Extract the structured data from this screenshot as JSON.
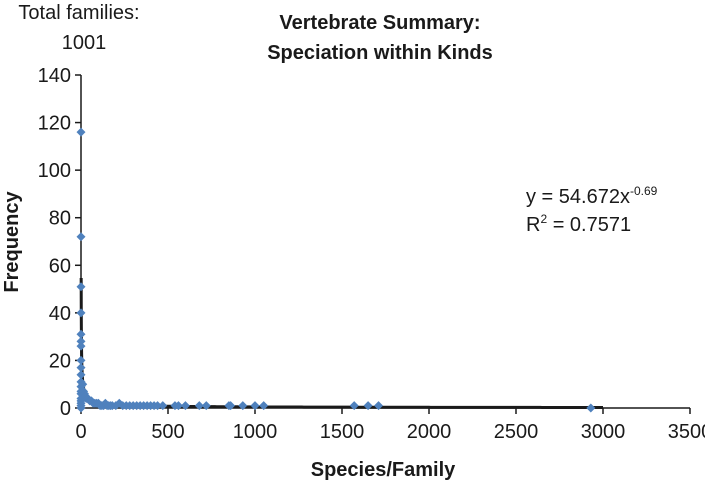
{
  "corner_note": {
    "label": "Total families:",
    "value": "1001"
  },
  "chart_data": {
    "type": "scatter",
    "title_line1": "Vertebrate Summary:",
    "title_line2": "Speciation within Kinds",
    "xlabel": "Species/Family",
    "ylabel": "Frequency",
    "xlim": [
      0,
      3500
    ],
    "ylim": [
      0,
      140
    ],
    "x_ticks": [
      "0",
      "500",
      "1000",
      "1500",
      "2000",
      "2500",
      "3000",
      "3500"
    ],
    "y_ticks": [
      "0",
      "20",
      "40",
      "60",
      "80",
      "100",
      "120",
      "140"
    ],
    "grid": false,
    "marker_color": "#4f81bd",
    "trendline_color": "#1a1a1a",
    "points": [
      [
        0,
        116
      ],
      [
        0,
        72
      ],
      [
        0,
        51
      ],
      [
        0,
        40
      ],
      [
        0,
        31
      ],
      [
        0,
        28
      ],
      [
        0,
        26
      ],
      [
        0,
        20
      ],
      [
        0,
        17
      ],
      [
        0,
        14
      ],
      [
        0,
        11
      ],
      [
        0,
        9
      ],
      [
        0,
        7
      ],
      [
        0,
        6
      ],
      [
        0,
        4
      ],
      [
        0,
        3
      ],
      [
        0,
        2
      ],
      [
        0,
        1
      ],
      [
        0,
        0
      ],
      [
        10,
        10
      ],
      [
        15,
        7
      ],
      [
        20,
        6
      ],
      [
        25,
        5
      ],
      [
        30,
        4
      ],
      [
        40,
        4
      ],
      [
        50,
        3
      ],
      [
        60,
        3
      ],
      [
        70,
        2
      ],
      [
        80,
        2
      ],
      [
        90,
        2
      ],
      [
        100,
        2
      ],
      [
        110,
        1
      ],
      [
        120,
        1
      ],
      [
        130,
        1
      ],
      [
        140,
        2
      ],
      [
        150,
        1
      ],
      [
        160,
        1
      ],
      [
        170,
        1
      ],
      [
        180,
        1
      ],
      [
        200,
        1
      ],
      [
        220,
        2
      ],
      [
        240,
        1
      ],
      [
        260,
        1
      ],
      [
        280,
        1
      ],
      [
        300,
        1
      ],
      [
        320,
        1
      ],
      [
        340,
        1
      ],
      [
        360,
        1
      ],
      [
        380,
        1
      ],
      [
        400,
        1
      ],
      [
        420,
        1
      ],
      [
        440,
        1
      ],
      [
        470,
        1
      ],
      [
        540,
        1
      ],
      [
        560,
        1
      ],
      [
        600,
        1
      ],
      [
        680,
        1
      ],
      [
        720,
        1
      ],
      [
        850,
        1
      ],
      [
        860,
        1
      ],
      [
        930,
        1
      ],
      [
        1000,
        1
      ],
      [
        1050,
        1
      ],
      [
        1570,
        1
      ],
      [
        1650,
        1
      ],
      [
        1710,
        1
      ],
      [
        2930,
        0
      ]
    ],
    "trendline": {
      "equation": "y = 54.672x",
      "exponent": "-0.69",
      "r2_label": "R",
      "r2_sup": "2",
      "r2_value": " = 0.7571",
      "coefficient": 54.672,
      "power": -0.69
    }
  }
}
